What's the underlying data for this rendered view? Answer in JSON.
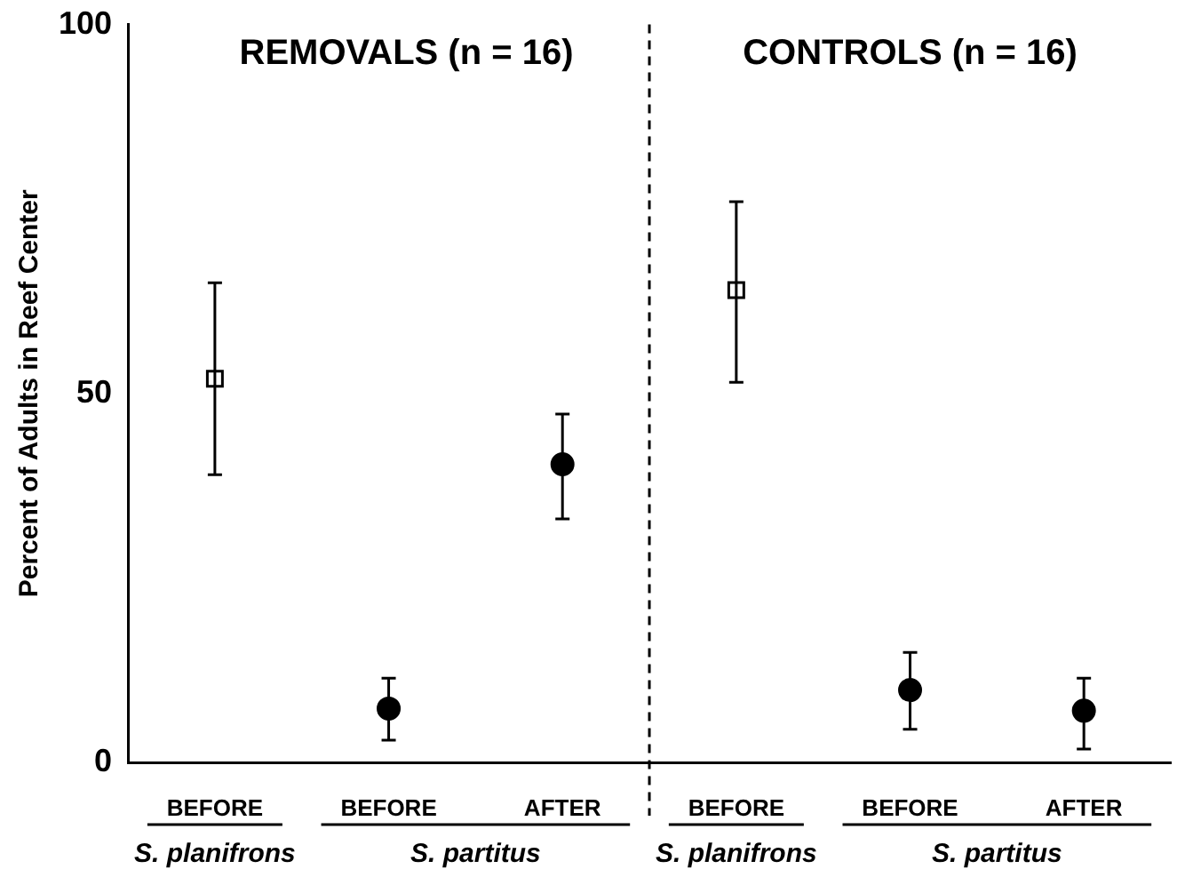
{
  "chart_data": {
    "type": "scatter",
    "ylabel": "Percent of Adults in Reef Center",
    "categories": [
      "BEFORE",
      "BEFORE",
      "AFTER",
      "BEFORE",
      "BEFORE",
      "AFTER"
    ],
    "series": [
      {
        "color": "#000000",
        "marker": "square",
        "values": [
          52,
          null,
          null,
          64,
          null,
          null
        ],
        "errors": [
          [
            39,
            65
          ],
          null,
          null,
          [
            51.5,
            76
          ],
          null,
          null
        ]
      },
      {
        "color": "#000000",
        "marker": "circle",
        "values": [
          null,
          7.3,
          40.4,
          null,
          9.8,
          7
        ],
        "errors": [
          null,
          [
            3,
            11.4
          ],
          [
            33,
            47.2
          ],
          null,
          [
            4.5,
            14.9
          ],
          [
            1.8,
            11.4
          ]
        ]
      }
    ],
    "ylim": [
      0,
      100
    ],
    "yticks": [
      0,
      50,
      100
    ],
    "grid": false,
    "legend": false,
    "annotations": [
      "REMOVALS (n = 16)",
      "CONTROLS (n = 16)",
      "S. planifrons",
      "S. partitus",
      "S. planifrons",
      "S. partitus"
    ]
  }
}
